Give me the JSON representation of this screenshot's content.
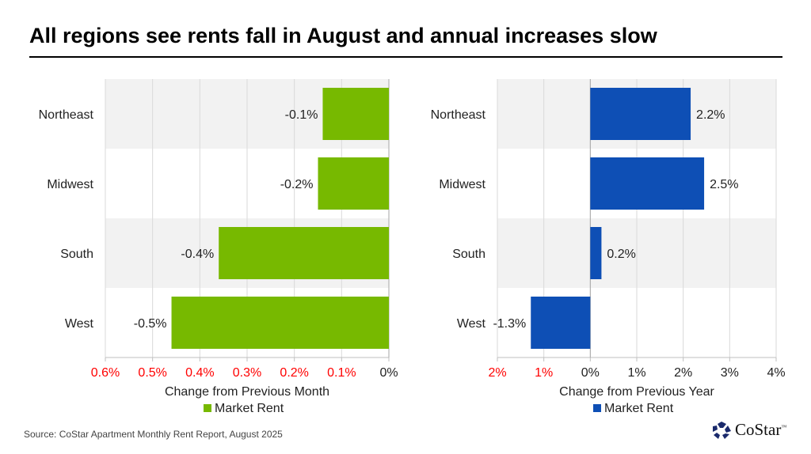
{
  "title": "All regions see rents fall in August and annual increases slow",
  "source": "Source: CoStar Apartment Monthly Rent Report, August 2025",
  "logo": {
    "text": "CoStar",
    "tm": "™"
  },
  "chart_data": [
    {
      "type": "bar",
      "orientation": "horizontal",
      "categories": [
        "Northeast",
        "Midwest",
        "South",
        "West"
      ],
      "series": [
        {
          "name": "Market Rent",
          "values": [
            -0.14,
            -0.15,
            -0.36,
            -0.46
          ],
          "labels": [
            "-0.1%",
            "-0.2%",
            "-0.4%",
            "-0.5%"
          ],
          "color": "#77b900"
        }
      ],
      "xlabel": "Change from Previous Month",
      "xlim": [
        -0.6,
        0
      ],
      "ticks": [
        -0.6,
        -0.5,
        -0.4,
        -0.3,
        -0.2,
        -0.1,
        0
      ],
      "tick_labels": [
        "0.6%",
        "0.5%",
        "0.4%",
        "0.3%",
        "0.2%",
        "0.1%",
        "0%"
      ],
      "negative_tick_color": "#ff0000",
      "legend": "bottom",
      "band_color": "#f2f2f2"
    },
    {
      "type": "bar",
      "orientation": "horizontal",
      "categories": [
        "Northeast",
        "Midwest",
        "South",
        "West"
      ],
      "series": [
        {
          "name": "Market Rent",
          "values": [
            2.16,
            2.45,
            0.24,
            -1.28
          ],
          "labels": [
            "2.2%",
            "2.5%",
            "0.2%",
            "-1.3%"
          ],
          "color": "#0e4fb5"
        }
      ],
      "xlabel": "Change from Previous Year",
      "xlim": [
        -2,
        4
      ],
      "ticks": [
        -2,
        -1,
        0,
        1,
        2,
        3,
        4
      ],
      "tick_labels": [
        "2%",
        "1%",
        "0%",
        "1%",
        "2%",
        "3%",
        "4%"
      ],
      "negative_tick_color": "#ff0000",
      "legend": "bottom",
      "band_color": "#f2f2f2"
    }
  ]
}
